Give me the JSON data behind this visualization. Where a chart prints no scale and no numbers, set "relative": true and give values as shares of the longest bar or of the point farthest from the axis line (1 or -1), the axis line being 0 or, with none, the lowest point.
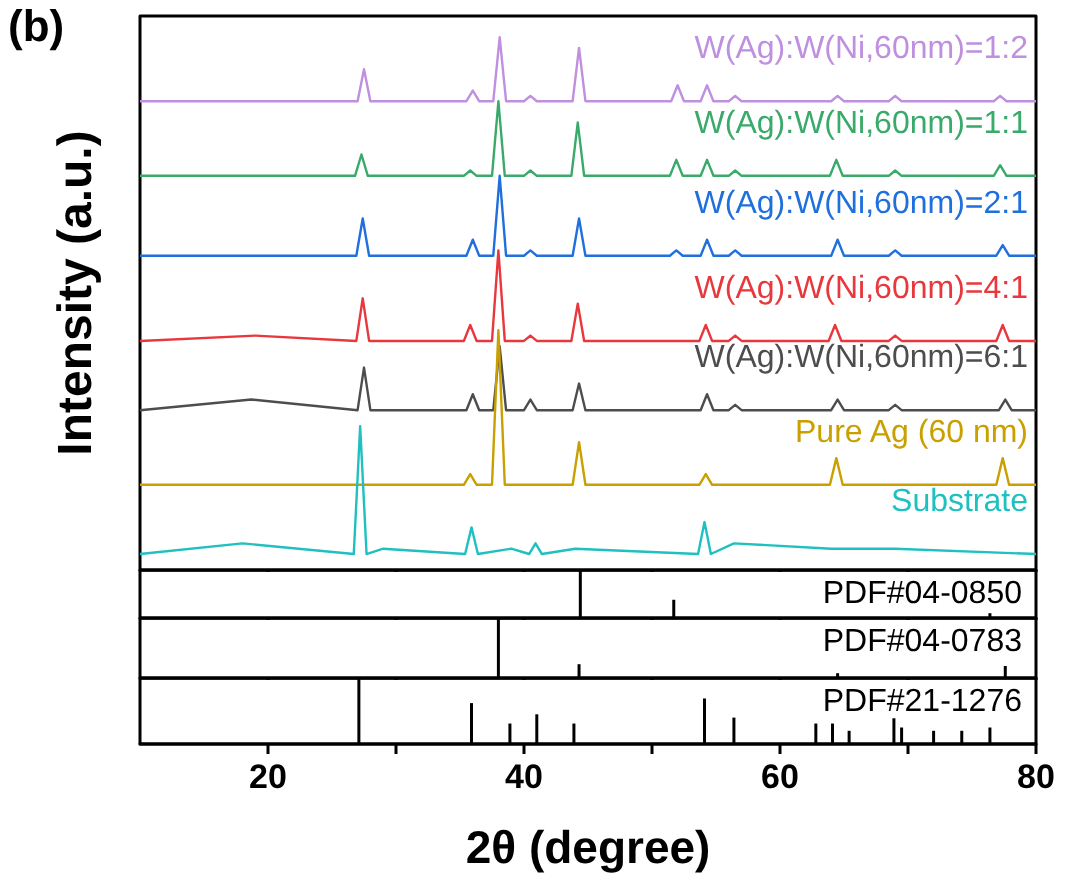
{
  "chart_data": [
    {
      "type": "line",
      "relative": true,
      "ylabel": "Intensity (a.u.)",
      "annotations": [
        "(b)"
      ],
      "xlim": [
        10,
        80
      ],
      "xticks": [
        20,
        {
          "value": 30,
          "label": null
        },
        40,
        {
          "value": 50,
          "label": null
        },
        60,
        {
          "value": 70,
          "label": null
        },
        80
      ],
      "tick_labels": false,
      "marker": "none",
      "line_style": "solid",
      "series": [
        {
          "name": "W(Ag):W(Ni,60nm)=1:2",
          "color": "#bf8fe0",
          "x": [
            10,
            27,
            27.5,
            28,
            35.5,
            36,
            36.5,
            37.6,
            38.1,
            38.6,
            40,
            40.5,
            41,
            43.8,
            44.3,
            44.8,
            51.5,
            52,
            52.5,
            53.8,
            54.3,
            54.8,
            56,
            56.5,
            57,
            64,
            64.5,
            65,
            68.5,
            69,
            69.5,
            76.7,
            77.2,
            77.7,
            80
          ],
          "values": [
            0.88,
            0.88,
            0.94,
            0.88,
            0.88,
            0.9,
            0.88,
            0.88,
            1.0,
            0.88,
            0.88,
            0.89,
            0.88,
            0.88,
            0.98,
            0.88,
            0.88,
            0.91,
            0.88,
            0.88,
            0.91,
            0.88,
            0.88,
            0.89,
            0.88,
            0.88,
            0.89,
            0.88,
            0.88,
            0.89,
            0.88,
            0.88,
            0.89,
            0.88,
            0.88
          ]
        },
        {
          "name": "W(Ag):W(Ni,60nm)=1:1",
          "color": "#3aaa6a",
          "x": [
            10,
            26.8,
            27.3,
            27.8,
            35.3,
            35.8,
            36.3,
            37.5,
            38.0,
            38.5,
            40,
            40.5,
            41,
            43.7,
            44.2,
            44.7,
            51.4,
            51.9,
            52.4,
            53.8,
            54.3,
            54.8,
            56,
            56.5,
            57,
            63.9,
            64.4,
            64.9,
            68.5,
            69,
            69.5,
            76.7,
            77.2,
            77.7,
            80
          ],
          "values": [
            0.74,
            0.74,
            0.78,
            0.74,
            0.74,
            0.75,
            0.74,
            0.74,
            0.88,
            0.74,
            0.74,
            0.75,
            0.74,
            0.74,
            0.84,
            0.74,
            0.74,
            0.77,
            0.74,
            0.74,
            0.77,
            0.74,
            0.74,
            0.75,
            0.74,
            0.74,
            0.77,
            0.74,
            0.74,
            0.75,
            0.74,
            0.74,
            0.76,
            0.74,
            0.74
          ]
        },
        {
          "name": "W(Ag):W(Ni,60nm)=2:1",
          "color": "#1f6fdc",
          "x": [
            10,
            26.9,
            27.4,
            27.9,
            35.5,
            36,
            36.5,
            37.6,
            38.1,
            38.6,
            40,
            40.5,
            41,
            43.8,
            44.3,
            44.8,
            51.4,
            51.9,
            52.4,
            53.8,
            54.3,
            54.8,
            56,
            56.5,
            57,
            64,
            64.5,
            65,
            68.5,
            69,
            69.5,
            76.9,
            77.4,
            77.9,
            80
          ],
          "values": [
            0.59,
            0.59,
            0.66,
            0.59,
            0.59,
            0.62,
            0.59,
            0.59,
            0.74,
            0.59,
            0.59,
            0.6,
            0.59,
            0.59,
            0.66,
            0.59,
            0.59,
            0.6,
            0.59,
            0.59,
            0.62,
            0.59,
            0.59,
            0.6,
            0.59,
            0.59,
            0.62,
            0.59,
            0.59,
            0.6,
            0.59,
            0.59,
            0.61,
            0.59,
            0.59
          ]
        },
        {
          "name": "W(Ag):W(Ni,60nm)=4:1",
          "color": "#e8383d",
          "x": [
            10,
            19,
            26.9,
            27.4,
            27.9,
            35.3,
            35.8,
            36.3,
            37.5,
            38.0,
            38.5,
            40,
            40.5,
            41,
            43.7,
            44.2,
            44.7,
            53.7,
            54.2,
            54.7,
            56,
            56.5,
            57,
            63.8,
            64.3,
            64.8,
            68.5,
            69,
            69.5,
            76.9,
            77.4,
            77.9,
            80
          ],
          "values": [
            0.43,
            0.44,
            0.43,
            0.51,
            0.43,
            0.43,
            0.46,
            0.43,
            0.43,
            0.6,
            0.43,
            0.43,
            0.44,
            0.43,
            0.43,
            0.5,
            0.43,
            0.43,
            0.46,
            0.43,
            0.43,
            0.44,
            0.43,
            0.43,
            0.46,
            0.43,
            0.43,
            0.44,
            0.43,
            0.43,
            0.46,
            0.43,
            0.43
          ]
        },
        {
          "name": "W(Ag):W(Ni,60nm)=6:1",
          "color": "#4d4d4d",
          "x": [
            10,
            18.7,
            27,
            27.5,
            28,
            35.5,
            36,
            36.5,
            37.6,
            38.1,
            38.6,
            40,
            40.5,
            41,
            43.8,
            44.3,
            44.8,
            53.8,
            54.3,
            54.8,
            56,
            56.5,
            57,
            64,
            64.5,
            65,
            68.5,
            69,
            69.5,
            77.1,
            77.6,
            78.1,
            80
          ],
          "values": [
            0.3,
            0.32,
            0.3,
            0.38,
            0.3,
            0.3,
            0.33,
            0.3,
            0.3,
            0.42,
            0.3,
            0.3,
            0.32,
            0.3,
            0.3,
            0.35,
            0.3,
            0.3,
            0.33,
            0.3,
            0.3,
            0.31,
            0.3,
            0.3,
            0.32,
            0.3,
            0.3,
            0.31,
            0.3,
            0.3,
            0.32,
            0.3,
            0.3
          ]
        },
        {
          "name": "Pure Ag (60 nm)",
          "color": "#c9a000",
          "x": [
            10,
            35.3,
            35.8,
            36.3,
            37.5,
            38.0,
            38.5,
            43.8,
            44.3,
            44.8,
            53.7,
            54.2,
            54.7,
            63.9,
            64.4,
            64.9,
            76.9,
            77.4,
            77.9,
            80
          ],
          "values": [
            0.16,
            0.16,
            0.18,
            0.16,
            0.16,
            0.45,
            0.16,
            0.16,
            0.24,
            0.16,
            0.16,
            0.18,
            0.16,
            0.16,
            0.21,
            0.16,
            0.16,
            0.21,
            0.16,
            0.16
          ]
        },
        {
          "name": "Substrate",
          "color": "#20c0c0",
          "x": [
            10,
            18,
            26.7,
            27.2,
            27.7,
            29,
            35.4,
            35.9,
            36.4,
            39,
            40.4,
            40.9,
            41.4,
            44,
            53.6,
            54.1,
            54.6,
            56.4,
            64,
            69,
            80
          ],
          "values": [
            0.03,
            0.05,
            0.03,
            0.27,
            0.03,
            0.04,
            0.03,
            0.08,
            0.03,
            0.04,
            0.03,
            0.05,
            0.03,
            0.04,
            0.03,
            0.09,
            0.03,
            0.05,
            0.04,
            0.04,
            0.03
          ]
        }
      ]
    },
    {
      "type": "bar",
      "relative": true,
      "title": "PDF#04-0850",
      "color": "#000000",
      "x": [
        44.4,
        51.7,
        76.4
      ],
      "values": [
        1,
        0.38,
        0.1
      ],
      "xlim": [
        10,
        80
      ],
      "xticks": [
        20,
        {
          "value": 30,
          "label": null
        },
        40,
        {
          "value": 50,
          "label": null
        },
        60,
        {
          "value": 70,
          "label": null
        },
        80
      ],
      "tick_labels": false
    },
    {
      "type": "bar",
      "relative": true,
      "title": "PDF#04-0783",
      "color": "#000000",
      "x": [
        38.0,
        44.3,
        64.5,
        77.6
      ],
      "values": [
        1,
        0.23,
        0.08,
        0.2
      ],
      "xlim": [
        10,
        80
      ],
      "xticks": [
        20,
        {
          "value": 30,
          "label": null
        },
        40,
        {
          "value": 50,
          "label": null
        },
        60,
        {
          "value": 70,
          "label": null
        },
        80
      ],
      "tick_labels": false
    },
    {
      "type": "bar",
      "relative": true,
      "title": "PDF#21-1276",
      "xlabel": "2θ (degree)",
      "color": "#000000",
      "x": [
        27.1,
        35.9,
        38.9,
        41.0,
        43.9,
        54.1,
        56.4,
        62.8,
        64.1,
        65.4,
        68.9,
        69.5,
        72.0,
        74.2,
        76.4
      ],
      "values": [
        1,
        0.62,
        0.31,
        0.45,
        0.31,
        0.69,
        0.4,
        0.31,
        0.31,
        0.2,
        0.39,
        0.25,
        0.2,
        0.2,
        0.25
      ],
      "xlim": [
        10,
        80
      ],
      "xticks": [
        20,
        {
          "value": 30,
          "label": null
        },
        40,
        {
          "value": 50,
          "label": null
        },
        60,
        {
          "value": 70,
          "label": null
        },
        80
      ],
      "tick_labels": "x"
    }
  ]
}
